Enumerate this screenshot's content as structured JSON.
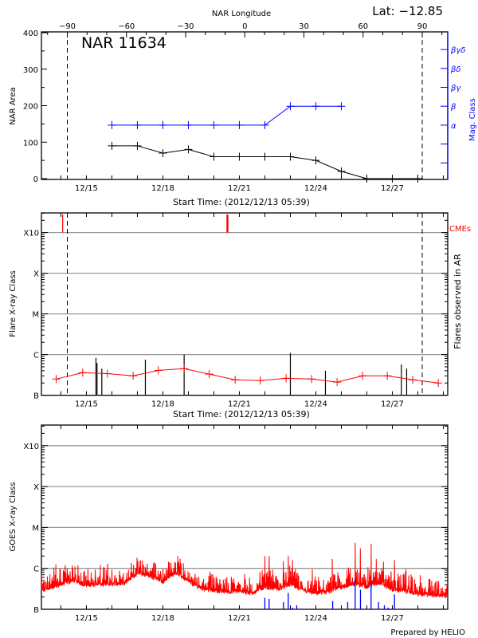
{
  "header": {
    "lat_label": "Lat: −12.85",
    "nar_label": "NAR 11634"
  },
  "footer": {
    "credit": "Prepared by HELIO"
  },
  "colors": {
    "area": "#000000",
    "mag_class": "#0000ff",
    "flare_fit": "#ff0000",
    "cme": "#ff0000",
    "goes": "#ff0000",
    "other_flares": "#0000ff",
    "grid": "#999999"
  },
  "chart_data": [
    {
      "type": "line",
      "title": "NAR 11634",
      "xlabel": "Start Time: (2012/12/13 05:39)",
      "xlim": [
        "2012-12-13 05:39",
        "2012-12-29 04:15"
      ],
      "x_ticks": [
        "12/15",
        "12/18",
        "12/21",
        "12/24",
        "12/27"
      ],
      "top_axis_label": "NAR Longitude",
      "top_ticks": [
        "-90",
        "-60",
        "-30",
        "0",
        "30",
        "60",
        "90"
      ],
      "dashed_longitudes": [
        -90,
        90
      ],
      "ylabel": "NAR Area",
      "ylim": [
        0,
        400
      ],
      "y_ticks": [
        "0",
        "100",
        "200",
        "300",
        "400"
      ],
      "y2label": "Mag. Class",
      "y2_ticks": [
        "",
        "",
        "α",
        "β",
        "βγ",
        "βδ",
        "βγδ"
      ],
      "grid": false,
      "series": [
        {
          "values": [
            {
              "x": "2012-12-16 00:00",
              "y": 90
            },
            {
              "x": "2012-12-17 00:00",
              "y": 90
            },
            {
              "x": "2012-12-18 00:00",
              "y": 70
            },
            {
              "x": "2012-12-19 00:00",
              "y": 80
            },
            {
              "x": "2012-12-20 00:00",
              "y": 60
            },
            {
              "x": "2012-12-21 00:00",
              "y": 60
            },
            {
              "x": "2012-12-22 00:00",
              "y": 60
            },
            {
              "x": "2012-12-23 00:00",
              "y": 60
            },
            {
              "x": "2012-12-24 00:00",
              "y": 50
            },
            {
              "x": "2012-12-25 00:00",
              "y": 20
            },
            {
              "x": "2012-12-26 00:00",
              "y": 0
            },
            {
              "x": "2012-12-27 00:00",
              "y": 0
            },
            {
              "x": "2012-12-28 00:00",
              "y": 0
            }
          ]
        },
        {
          "axis": "y2",
          "values": [
            {
              "x": "2012-12-16 00:00",
              "y": "α"
            },
            {
              "x": "2012-12-17 00:00",
              "y": "α"
            },
            {
              "x": "2012-12-18 00:00",
              "y": "α"
            },
            {
              "x": "2012-12-19 00:00",
              "y": "α"
            },
            {
              "x": "2012-12-20 00:00",
              "y": "α"
            },
            {
              "x": "2012-12-21 00:00",
              "y": "α"
            },
            {
              "x": "2012-12-22 00:00",
              "y": "α"
            },
            {
              "x": "2012-12-23 00:00",
              "y": "β"
            },
            {
              "x": "2012-12-24 00:00",
              "y": "β"
            },
            {
              "x": "2012-12-25 00:00",
              "y": "β"
            }
          ]
        }
      ]
    },
    {
      "type": "line",
      "xlabel": "Start Time: (2012/12/13 05:39)",
      "xlim": [
        "2012-12-13 05:39",
        "2012-12-29 04:15"
      ],
      "x_ticks": [
        "12/15",
        "12/18",
        "12/21",
        "12/24",
        "12/27"
      ],
      "dashed_longitudes": [
        -90,
        90
      ],
      "ylabel": "Flare X-ray Class",
      "y_scale": "log",
      "ylim": [
        1e-07,
        0.003
      ],
      "y_ticks": [
        "B",
        "C",
        "M",
        "X",
        "X10"
      ],
      "y2label": "Flares observed in AR",
      "grid": true,
      "cme_label": "CMEs",
      "cmes": [
        {
          "x": "2012-12-14 01:40",
          "width": 1
        },
        {
          "x": "2012-12-20 12:45",
          "width": 2
        }
      ],
      "flares": [
        {
          "x": "2012-12-15 09:00",
          "y": 8.3e-07
        },
        {
          "x": "2012-12-15 10:00",
          "y": 6.2e-07
        },
        {
          "x": "2012-12-15 14:30",
          "y": 4.5e-07
        },
        {
          "x": "2012-12-17 07:30",
          "y": 7.5e-07
        },
        {
          "x": "2012-12-18 20:00",
          "y": 1e-06
        },
        {
          "x": "2012-12-23 00:00",
          "y": 1.1e-06
        },
        {
          "x": "2012-12-24 09:00",
          "y": 4e-07
        },
        {
          "x": "2012-12-27 08:30",
          "y": 5.7e-07
        },
        {
          "x": "2012-12-27 13:30",
          "y": 4.5e-07
        }
      ],
      "series": [
        {
          "values": [
            {
              "x": "2012-12-13 19:30",
              "y": 2.5e-07
            },
            {
              "x": "2012-12-14 20:30",
              "y": 3.6e-07
            },
            {
              "x": "2012-12-15 19:45",
              "y": 3.4e-07
            },
            {
              "x": "2012-12-16 20:00",
              "y": 3e-07
            },
            {
              "x": "2012-12-17 19:45",
              "y": 4.1e-07
            },
            {
              "x": "2012-12-18 20:00",
              "y": 4.5e-07
            },
            {
              "x": "2012-12-19 19:40",
              "y": 3.3e-07
            },
            {
              "x": "2012-12-20 20:00",
              "y": 2.4e-07
            },
            {
              "x": "2012-12-21 19:40",
              "y": 2.3e-07
            },
            {
              "x": "2012-12-22 20:00",
              "y": 2.6e-07
            },
            {
              "x": "2012-12-23 20:00",
              "y": 2.5e-07
            },
            {
              "x": "2012-12-24 20:00",
              "y": 2.1e-07
            },
            {
              "x": "2012-12-25 20:00",
              "y": 3e-07
            },
            {
              "x": "2012-12-26 19:15",
              "y": 3e-07
            },
            {
              "x": "2012-12-27 19:15",
              "y": 2.4e-07
            },
            {
              "x": "2012-12-28 19:15",
              "y": 2e-07
            }
          ]
        }
      ]
    },
    {
      "type": "line",
      "xlim": [
        "2012-12-13 05:39",
        "2012-12-29 04:15"
      ],
      "x_ticks": [
        "12/15",
        "12/18",
        "12/21",
        "12/24",
        "12/27"
      ],
      "ylabel": "GOES X-ray Class",
      "y_scale": "log",
      "ylim": [
        1e-07,
        0.003
      ],
      "y_ticks": [
        "B",
        "C",
        "M",
        "X",
        "X10"
      ],
      "grid": true,
      "series": [
        {
          "values": [
            {
              "x": "2012-12-13 05:39",
              "y": 2.8e-07
            },
            {
              "x": "2012-12-14 00:00",
              "y": 4e-07
            },
            {
              "x": "2012-12-14 12:00",
              "y": 5e-07
            },
            {
              "x": "2012-12-15 00:00",
              "y": 3.8e-07
            },
            {
              "x": "2012-12-15 12:00",
              "y": 4e-07
            },
            {
              "x": "2012-12-16 00:00",
              "y": 4e-07
            },
            {
              "x": "2012-12-16 12:00",
              "y": 4.4e-07
            },
            {
              "x": "2012-12-17 00:00",
              "y": 7.4e-07
            },
            {
              "x": "2012-12-17 12:00",
              "y": 6.4e-07
            },
            {
              "x": "2012-12-18 00:00",
              "y": 4.7e-07
            },
            {
              "x": "2012-12-18 12:00",
              "y": 8e-07
            },
            {
              "x": "2012-12-19 00:00",
              "y": 4.7e-07
            },
            {
              "x": "2012-12-19 12:00",
              "y": 3.2e-07
            },
            {
              "x": "2012-12-20 00:00",
              "y": 2.8e-07
            },
            {
              "x": "2012-12-20 12:00",
              "y": 2.6e-07
            },
            {
              "x": "2012-12-21 00:00",
              "y": 2.8e-07
            },
            {
              "x": "2012-12-21 12:00",
              "y": 2.4e-07
            },
            {
              "x": "2012-12-22 00:00",
              "y": 3.5e-07
            },
            {
              "x": "2012-12-22 12:00",
              "y": 3e-07
            },
            {
              "x": "2012-12-23 00:00",
              "y": 4e-07
            },
            {
              "x": "2012-12-23 12:00",
              "y": 2.8e-07
            },
            {
              "x": "2012-12-24 00:00",
              "y": 2.4e-07
            },
            {
              "x": "2012-12-24 12:00",
              "y": 2.6e-07
            },
            {
              "x": "2012-12-25 00:00",
              "y": 3.5e-07
            },
            {
              "x": "2012-12-25 12:00",
              "y": 4e-07
            },
            {
              "x": "2012-12-26 00:00",
              "y": 3.5e-07
            },
            {
              "x": "2012-12-26 12:00",
              "y": 4.4e-07
            },
            {
              "x": "2012-12-27 00:00",
              "y": 3e-07
            },
            {
              "x": "2012-12-27 12:00",
              "y": 2.8e-07
            },
            {
              "x": "2012-12-28 00:00",
              "y": 2.3e-07
            },
            {
              "x": "2012-12-28 12:00",
              "y": 2.2e-07
            },
            {
              "x": "2012-12-29 04:15",
              "y": 2.1e-07
            }
          ],
          "peaks": [
            {
              "x": "2012-12-13 19:15",
              "y": 1.25e-06
            },
            {
              "x": "2012-12-15 20:00",
              "y": 1.3e-06
            },
            {
              "x": "2012-12-17 00:00",
              "y": 1.45e-06
            },
            {
              "x": "2012-12-17 16:00",
              "y": 1.4e-06
            },
            {
              "x": "2012-12-18 13:40",
              "y": 1.4e-06
            },
            {
              "x": "2012-12-22 00:00",
              "y": 2e-06
            },
            {
              "x": "2012-12-22 04:00",
              "y": 2e-06
            },
            {
              "x": "2012-12-22 17:30",
              "y": 1.5e-06
            },
            {
              "x": "2012-12-22 22:00",
              "y": 2e-06
            },
            {
              "x": "2012-12-23 02:00",
              "y": 1.6e-06
            },
            {
              "x": "2012-12-23 20:40",
              "y": 9.5e-07
            },
            {
              "x": "2012-12-24 15:30",
              "y": 1.7e-06
            },
            {
              "x": "2012-12-25 13:00",
              "y": 4.2e-06
            },
            {
              "x": "2012-12-25 17:50",
              "y": 3.1e-06
            },
            {
              "x": "2012-12-26 04:00",
              "y": 4e-06
            },
            {
              "x": "2012-12-26 08:50",
              "y": 1.7e-06
            },
            {
              "x": "2012-12-26 15:40",
              "y": 1.45e-06
            },
            {
              "x": "2012-12-27 02:00",
              "y": 1.6e-06
            },
            {
              "x": "2012-12-27 12:50",
              "y": 9.5e-07
            },
            {
              "x": "2012-12-28 19:30",
              "y": 3.8e-07
            }
          ]
        }
      ],
      "other_flares": [
        {
          "x": "2012-12-15 20:00",
          "y": 1e-07
        },
        {
          "x": "2012-12-22 00:00",
          "y": 1.9e-07
        },
        {
          "x": "2012-12-22 04:00",
          "y": 1.8e-07
        },
        {
          "x": "2012-12-22 17:30",
          "y": 1.5e-07
        },
        {
          "x": "2012-12-22 22:00",
          "y": 2.5e-07
        },
        {
          "x": "2012-12-23 02:00",
          "y": 1.1e-07
        },
        {
          "x": "2012-12-23 06:00",
          "y": 1.25e-07
        },
        {
          "x": "2012-12-24 15:50",
          "y": 1.6e-07
        },
        {
          "x": "2012-12-25 06:00",
          "y": 1.5e-07
        },
        {
          "x": "2012-12-25 13:00",
          "y": 5.6e-07
        },
        {
          "x": "2012-12-25 18:00",
          "y": 3e-07
        },
        {
          "x": "2012-12-26 04:00",
          "y": 4.4e-07
        },
        {
          "x": "2012-12-26 11:00",
          "y": 1.5e-07
        },
        {
          "x": "2012-12-26 16:30",
          "y": 1.25e-07
        },
        {
          "x": "2012-12-26 20:00",
          "y": 1.1e-07
        },
        {
          "x": "2012-12-27 02:00",
          "y": 2.3e-07
        }
      ]
    }
  ]
}
